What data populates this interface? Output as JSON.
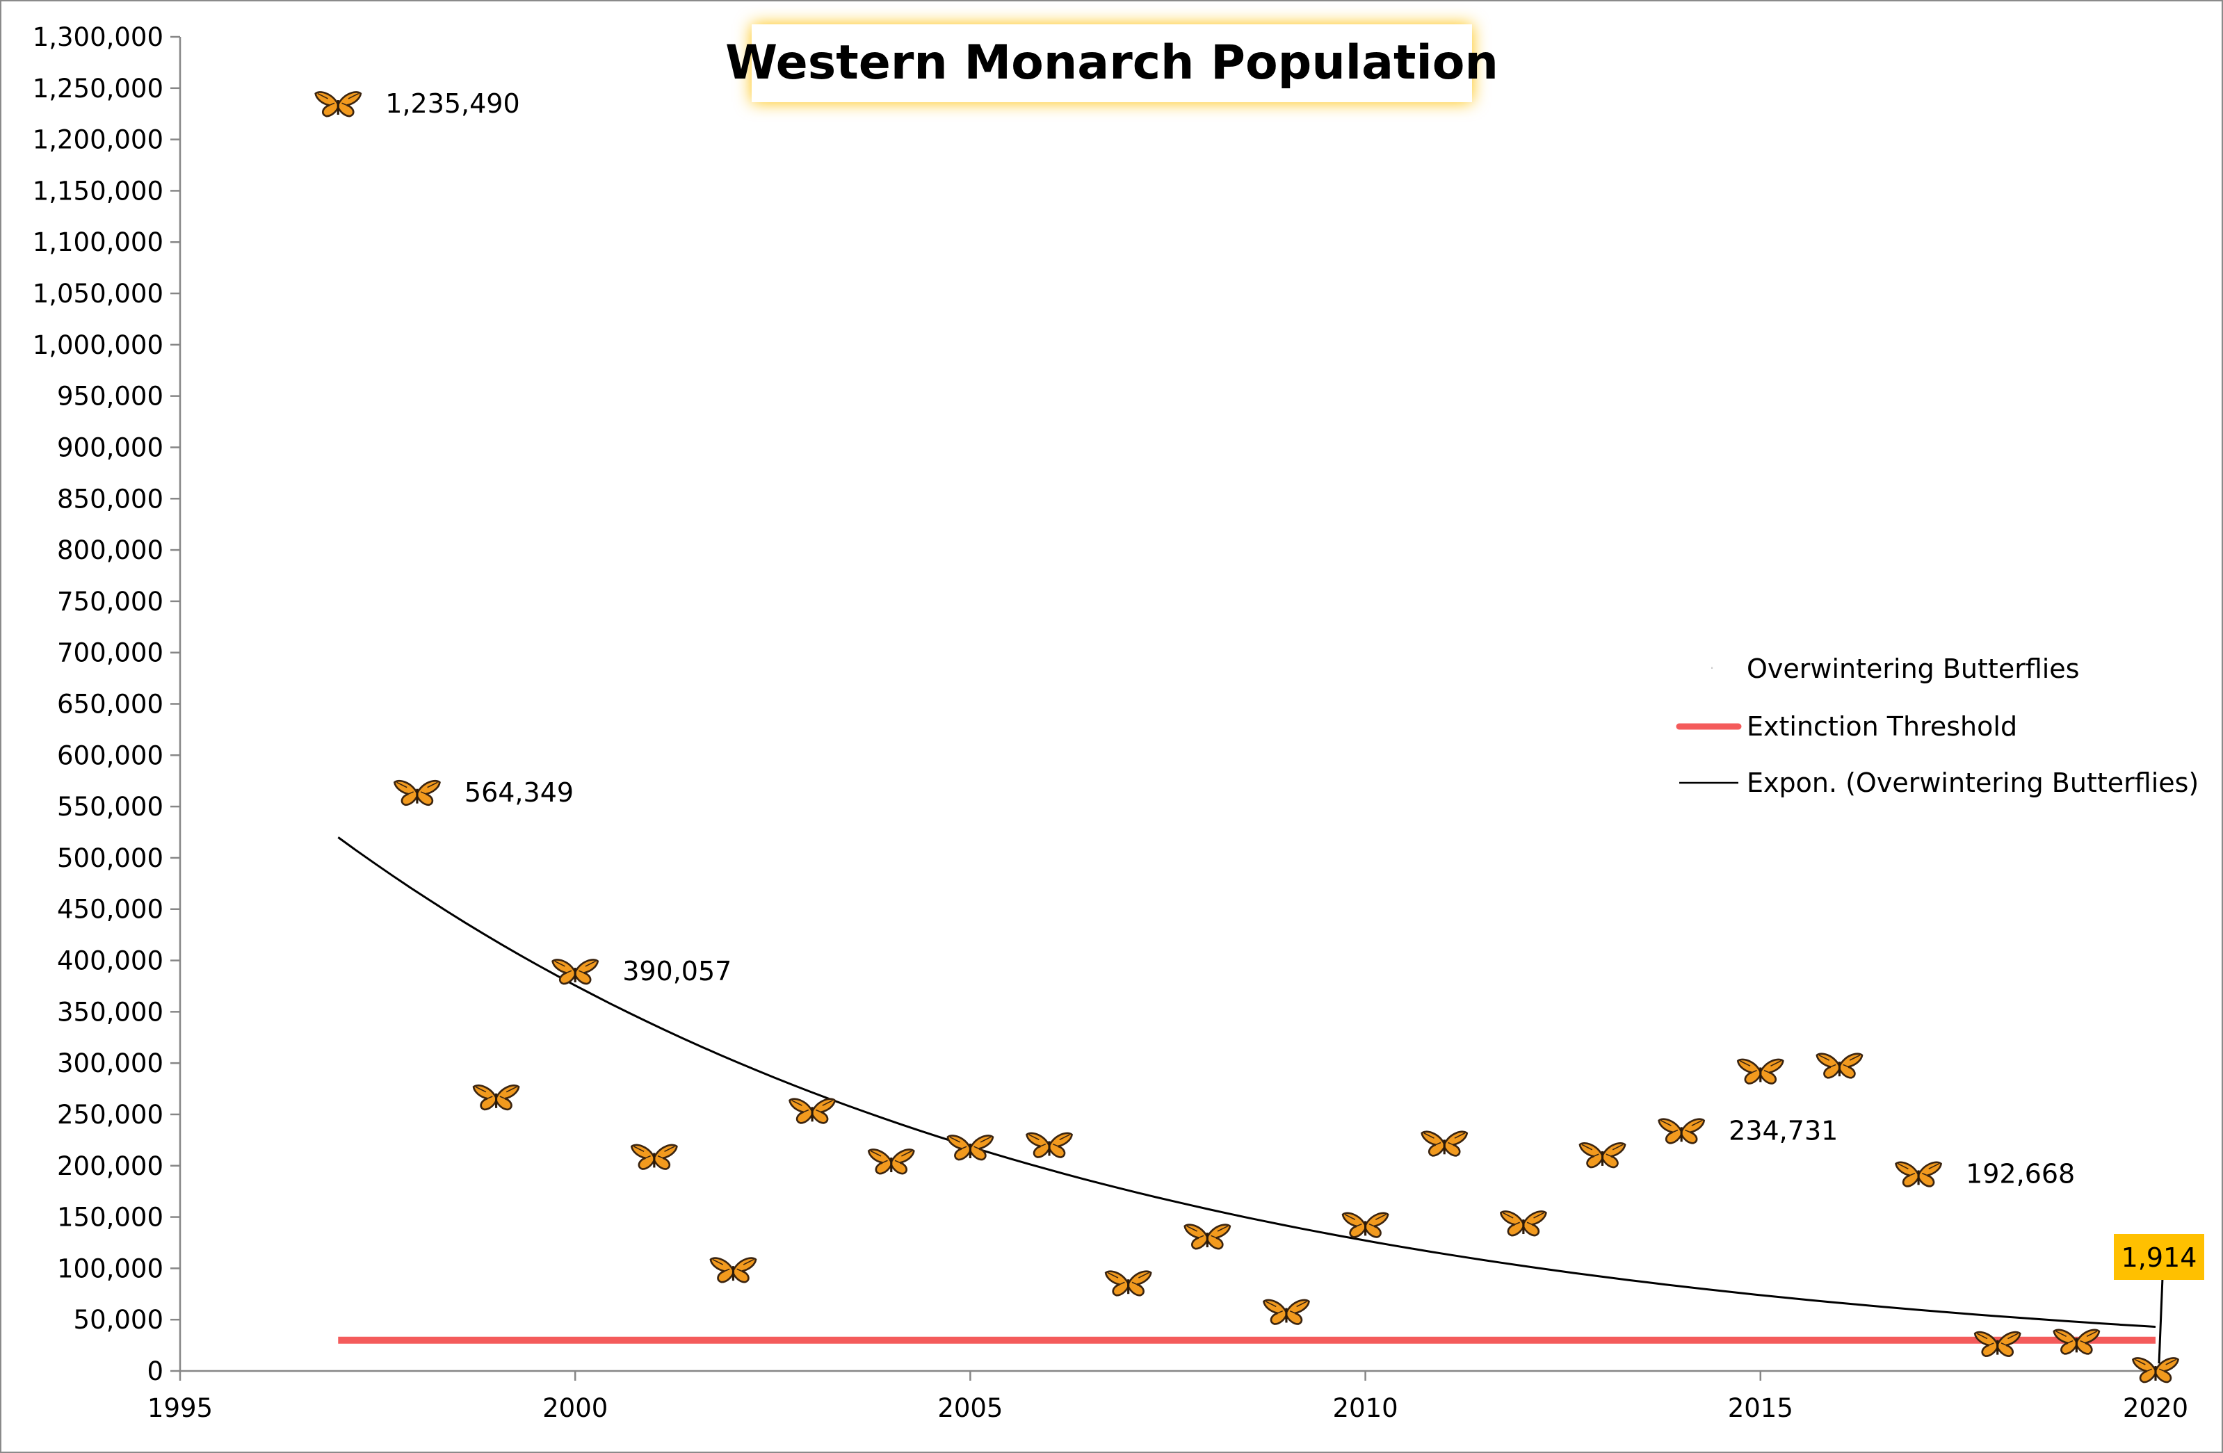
{
  "chart_data": {
    "type": "scatter",
    "title": "Western Monarch Population",
    "xlim": [
      1995,
      2020
    ],
    "ylim": [
      0,
      1300000
    ],
    "x_ticks": [
      1995,
      2000,
      2005,
      2010,
      2015,
      2020
    ],
    "y_tick_step": 50000,
    "grid": false,
    "legend_placement": "right",
    "series": [
      {
        "name": "Overwintering Butterflies",
        "marker": "butterfly-icon",
        "x": [
          1997,
          1998,
          1999,
          2000,
          2001,
          2002,
          2003,
          2004,
          2005,
          2006,
          2007,
          2008,
          2009,
          2010,
          2011,
          2012,
          2013,
          2014,
          2015,
          2016,
          2017,
          2018,
          2019,
          2020
        ],
        "y": [
          1235490,
          564349,
          267574,
          390057,
          209570,
          99353,
          254378,
          205085,
          218679,
          221058,
          86437,
          131889,
          58468,
          143204,
          222525,
          144812,
          211275,
          234731,
          292888,
          298464,
          192668,
          27218,
          29418,
          1914
        ]
      },
      {
        "name": "Extinction Threshold",
        "type": "line",
        "color": "#f45b5b",
        "x": [
          1997,
          2020
        ],
        "y": [
          30000,
          30000
        ]
      },
      {
        "name": "Expon. (Overwintering Butterflies)",
        "type": "trendline",
        "color": "#000000",
        "x": [
          1997,
          2020
        ],
        "y": [
          520000,
          43000
        ]
      }
    ],
    "data_labels": [
      {
        "x": 1997,
        "text": "1,235,490"
      },
      {
        "x": 1998,
        "text": "564,349"
      },
      {
        "x": 2000,
        "text": "390,057"
      },
      {
        "x": 2014,
        "text": "234,731"
      },
      {
        "x": 2017,
        "text": "192,668"
      },
      {
        "x": 2020,
        "text": "1,914",
        "highlight": "#ffc000"
      }
    ],
    "title_glow_color": "#ffc000"
  }
}
